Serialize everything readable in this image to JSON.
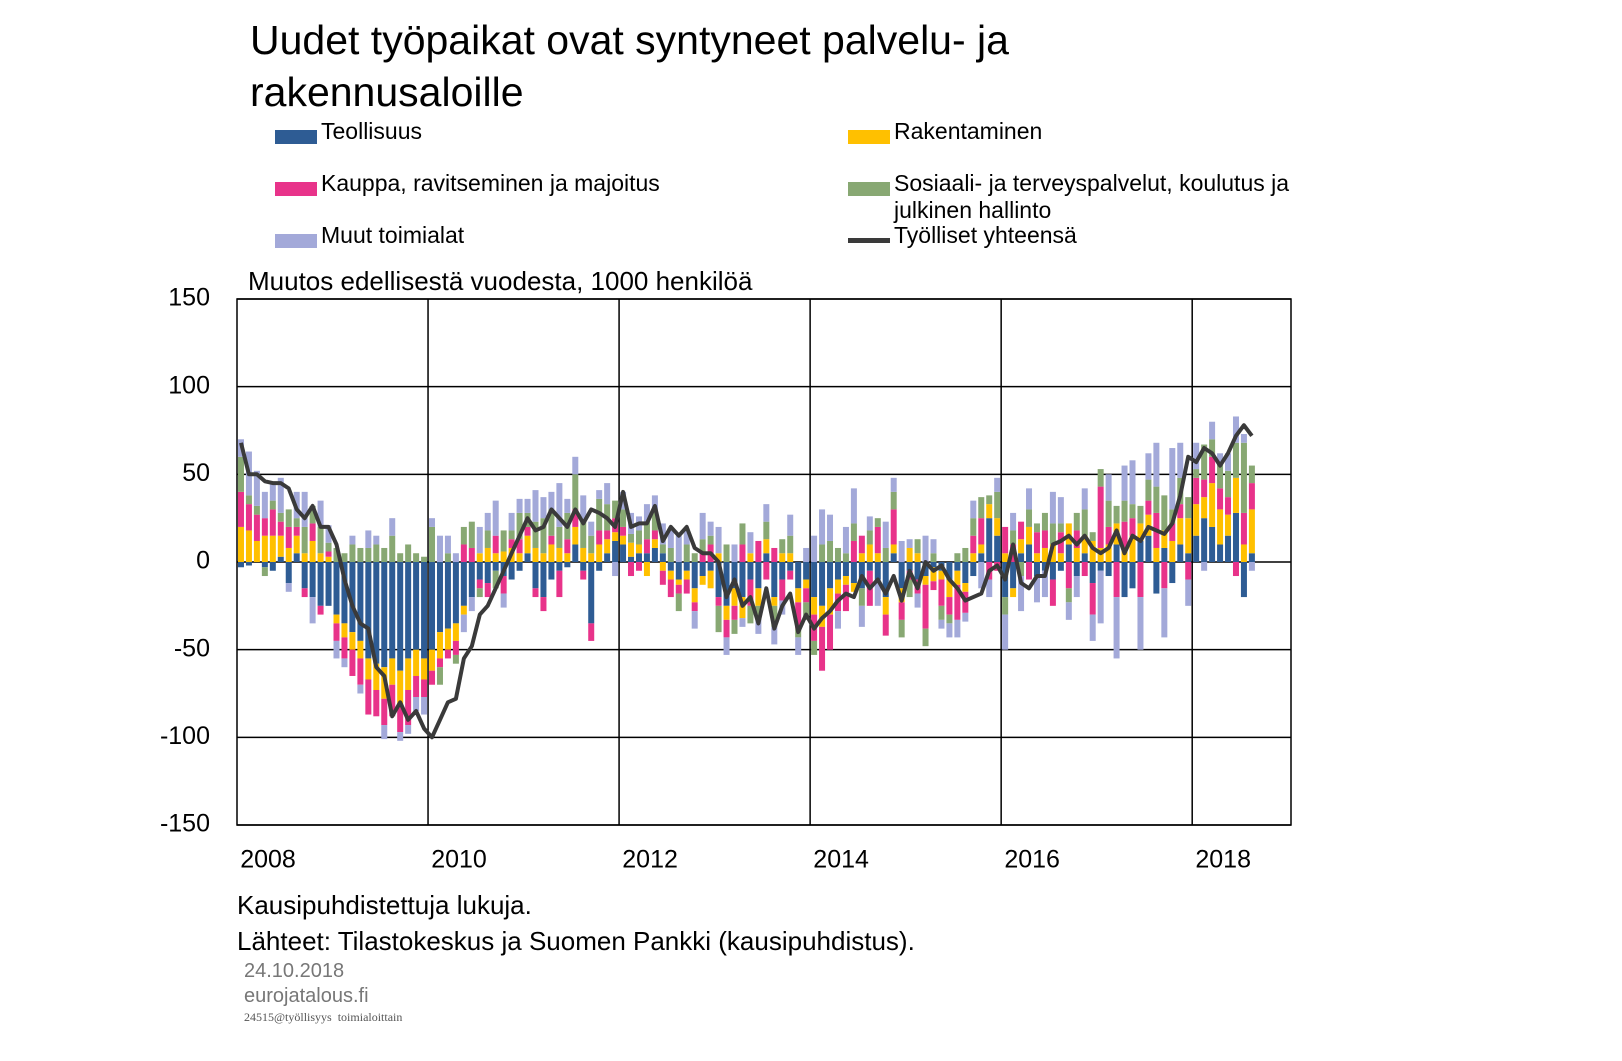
{
  "chart_data": {
    "type": "bar",
    "title": "Uudet työpaikat ovat syntyneet palvelu- ja rakennusaloille",
    "subtitle": "Muutos edellisestä vuodesta, 1000 henkilöä",
    "notes": [
      "Kausipuhdistettuja lukuja.",
      "Lähteet: Tilastokeskus ja Suomen Pankki (kausipuhdistus).",
      "24.10.2018",
      "eurojatalous.fi",
      "24515@työllisyys  toimialoittain"
    ],
    "categories": [
      "2008",
      null,
      null,
      null,
      null,
      null,
      null,
      null,
      null,
      null,
      null,
      null,
      null,
      null,
      null,
      null,
      null,
      null,
      null,
      null,
      null,
      null,
      null,
      null,
      "2010",
      null,
      null,
      null,
      null,
      null,
      null,
      null,
      null,
      null,
      null,
      null,
      null,
      null,
      null,
      null,
      null,
      null,
      null,
      null,
      null,
      null,
      null,
      null,
      "2012",
      null,
      null,
      null,
      null,
      null,
      null,
      null,
      null,
      null,
      null,
      null,
      null,
      null,
      null,
      null,
      null,
      null,
      null,
      null,
      null,
      null,
      null,
      null,
      "2014",
      null,
      null,
      null,
      null,
      null,
      null,
      null,
      null,
      null,
      null,
      null,
      null,
      null,
      null,
      null,
      null,
      null,
      null,
      null,
      null,
      null,
      null,
      null,
      "2016",
      null,
      null,
      null,
      null,
      null,
      null,
      null,
      null,
      null,
      null,
      null,
      null,
      null,
      null,
      null,
      null,
      null,
      null,
      null,
      null,
      null,
      null,
      null,
      "2018",
      null,
      null,
      null,
      null,
      null,
      null,
      null
    ],
    "series": [
      {
        "name": "Teollisuus",
        "color": "#2e5c94",
        "values": [
          -3,
          -2,
          0,
          -3,
          -5,
          3,
          -12,
          5,
          -15,
          -20,
          -25,
          -25,
          -30,
          -35,
          -40,
          -45,
          -55,
          -58,
          -60,
          -55,
          -62,
          -55,
          -50,
          -55,
          -50,
          -40,
          -38,
          -35,
          -25,
          -20,
          -10,
          -12,
          -5,
          -8,
          -10,
          -5,
          5,
          -15,
          -20,
          -10,
          -5,
          -3,
          10,
          -5,
          -35,
          -5,
          5,
          12,
          10,
          3,
          5,
          5,
          8,
          5,
          -5,
          -10,
          -5,
          -15,
          -8,
          -5,
          -20,
          -25,
          -15,
          -20,
          -10,
          -15,
          5,
          -20,
          -10,
          -5,
          -15,
          -10,
          -20,
          -25,
          -15,
          -10,
          -8,
          -12,
          -15,
          -5,
          -10,
          -20,
          5,
          -15,
          -5,
          -10,
          -8,
          -3,
          -5,
          -10,
          -5,
          -12,
          -8,
          5,
          25,
          15,
          -20,
          -15,
          5,
          10,
          -8,
          -5,
          -10,
          -5,
          10,
          -8,
          5,
          -12,
          -5,
          -8,
          10,
          -20,
          -15,
          12,
          15,
          -18,
          8,
          -12,
          10,
          5,
          15,
          25,
          20,
          10,
          15,
          28,
          -20,
          5
        ]
      },
      {
        "name": "Rakentaminen",
        "color": "#ffc000",
        "values": [
          20,
          18,
          12,
          15,
          15,
          12,
          8,
          10,
          5,
          12,
          5,
          3,
          -5,
          -8,
          -10,
          -10,
          -12,
          -15,
          -18,
          -15,
          -20,
          -18,
          -15,
          -12,
          -12,
          -15,
          -12,
          -10,
          -5,
          0,
          5,
          8,
          5,
          6,
          8,
          5,
          10,
          8,
          5,
          10,
          8,
          5,
          10,
          8,
          5,
          10,
          8,
          5,
          5,
          8,
          5,
          -8,
          5,
          -5,
          -5,
          -3,
          -5,
          -8,
          -5,
          -10,
          5,
          -8,
          -10,
          -12,
          5,
          -10,
          8,
          -5,
          5,
          5,
          -8,
          -5,
          -10,
          -12,
          -15,
          -8,
          -5,
          -5,
          5,
          10,
          5,
          -10,
          5,
          -8,
          8,
          5,
          -5,
          -8,
          -5,
          -10,
          -8,
          -5,
          5,
          5,
          8,
          10,
          5,
          -5,
          8,
          10,
          5,
          8,
          10,
          5,
          12,
          8,
          10,
          12,
          8,
          10,
          12,
          8,
          15,
          10,
          12,
          8,
          10,
          12,
          15,
          20,
          18,
          12,
          25,
          20,
          12,
          20,
          10,
          25
        ]
      },
      {
        "name": "Kauppa, ravitseminen ja majoitus",
        "color": "#e8338a",
        "values": [
          20,
          15,
          15,
          10,
          15,
          8,
          12,
          5,
          -5,
          10,
          -5,
          3,
          -10,
          -12,
          -15,
          -15,
          -20,
          -15,
          -15,
          -18,
          -15,
          -20,
          -12,
          -10,
          -8,
          -5,
          -5,
          -8,
          10,
          8,
          -5,
          -8,
          10,
          -10,
          5,
          8,
          5,
          -5,
          -8,
          5,
          -15,
          8,
          10,
          -5,
          -10,
          8,
          5,
          8,
          5,
          -8,
          -5,
          8,
          5,
          -8,
          -10,
          -5,
          -8,
          -5,
          5,
          10,
          -5,
          -10,
          -8,
          10,
          -15,
          12,
          -10,
          8,
          -12,
          -5,
          -15,
          -8,
          -15,
          -25,
          -20,
          -10,
          -15,
          12,
          10,
          -20,
          15,
          -12,
          20,
          -10,
          -5,
          -8,
          -25,
          -5,
          -15,
          -10,
          -20,
          -12,
          10,
          15,
          -10,
          -5,
          15,
          10,
          10,
          -10,
          12,
          10,
          -15,
          12,
          -15,
          10,
          -8,
          -18,
          35,
          10,
          -20,
          15,
          10,
          -20,
          8,
          20,
          -15,
          10,
          8,
          -10,
          15,
          10,
          15,
          12,
          10,
          -8,
          18,
          15
        ]
      },
      {
        "name": "Sosiaali- ja terveyspalvelut, koulutus ja julkinen hallinto",
        "color": "#88a873",
        "values": [
          20,
          5,
          5,
          -5,
          5,
          5,
          10,
          5,
          15,
          10,
          15,
          5,
          8,
          5,
          10,
          8,
          8,
          10,
          8,
          15,
          5,
          10,
          5,
          3,
          20,
          -10,
          5,
          -5,
          10,
          15,
          -5,
          10,
          -10,
          12,
          5,
          15,
          8,
          15,
          20,
          15,
          12,
          15,
          20,
          15,
          10,
          18,
          15,
          10,
          10,
          5,
          8,
          10,
          12,
          5,
          8,
          -10,
          10,
          5,
          8,
          5,
          -15,
          10,
          -8,
          12,
          -10,
          -8,
          10,
          -12,
          8,
          10,
          -5,
          -10,
          -8,
          10,
          12,
          8,
          5,
          10,
          -10,
          8,
          5,
          8,
          10,
          -10,
          -10,
          8,
          -10,
          5,
          -8,
          -5,
          5,
          8,
          10,
          12,
          5,
          15,
          -10,
          8,
          -8,
          10,
          5,
          10,
          12,
          5,
          -8,
          10,
          15,
          5,
          10,
          15,
          10,
          12,
          8,
          10,
          12,
          15,
          20,
          8,
          15,
          12,
          5,
          20,
          10,
          15,
          15,
          20,
          40,
          10
        ]
      },
      {
        "name": "Muut toimialat",
        "color": "#a3a9d9",
        "values": [
          10,
          25,
          20,
          15,
          10,
          20,
          -5,
          15,
          20,
          -15,
          15,
          10,
          -10,
          -5,
          5,
          -5,
          10,
          5,
          -8,
          10,
          -5,
          -5,
          -8,
          -10,
          5,
          15,
          10,
          5,
          -10,
          -8,
          15,
          10,
          20,
          -8,
          10,
          8,
          8,
          18,
          12,
          10,
          25,
          8,
          10,
          15,
          8,
          5,
          12,
          -8,
          10,
          12,
          8,
          10,
          8,
          12,
          10,
          15,
          8,
          -10,
          15,
          8,
          15,
          -10,
          10,
          -5,
          12,
          -8,
          10,
          -10,
          -8,
          12,
          -10,
          8,
          15,
          20,
          15,
          -10,
          15,
          20,
          -12,
          8,
          -15,
          15,
          8,
          12,
          5,
          -8,
          15,
          8,
          -5,
          -8,
          -10,
          -5,
          10,
          -15,
          -10,
          8,
          -20,
          10,
          -20,
          12,
          -15,
          -15,
          18,
          15,
          -10,
          -12,
          12,
          -15,
          -30,
          15,
          -35,
          20,
          25,
          -30,
          15,
          25,
          -28,
          35,
          20,
          -15,
          15,
          -5,
          10,
          5,
          10,
          15,
          5,
          -5
        ]
      },
      {
        "name": "Työlliset yhteensä",
        "type": "line",
        "color": "#3a3a3a",
        "values": [
          68,
          50,
          50,
          46,
          45,
          45,
          42,
          30,
          25,
          32,
          20,
          20,
          10,
          -10,
          -25,
          -35,
          -38,
          -60,
          -65,
          -88,
          -80,
          -90,
          -85,
          -95,
          -100,
          -90,
          -80,
          -78,
          -55,
          -48,
          -30,
          -25,
          -15,
          -5,
          5,
          15,
          25,
          18,
          20,
          30,
          25,
          20,
          30,
          22,
          30,
          28,
          25,
          20,
          40,
          20,
          22,
          22,
          32,
          12,
          20,
          15,
          20,
          8,
          5,
          5,
          0,
          -20,
          -10,
          -25,
          -20,
          -35,
          -15,
          -38,
          -25,
          -18,
          -40,
          -30,
          -38,
          -32,
          -28,
          -22,
          -18,
          -20,
          -8,
          -15,
          -10,
          -18,
          -8,
          -22,
          -5,
          -15,
          0,
          -5,
          -2,
          -10,
          -15,
          -22,
          -20,
          -18,
          -5,
          -2,
          -10,
          10,
          -12,
          -15,
          -8,
          -8,
          10,
          12,
          15,
          10,
          15,
          8,
          5,
          8,
          18,
          5,
          15,
          12,
          20,
          18,
          16,
          22,
          38,
          60,
          57,
          65,
          62,
          55,
          62,
          72,
          78,
          72
        ]
      }
    ],
    "ylim": [
      -150,
      150
    ],
    "yticks": [
      150,
      100,
      50,
      0,
      -50,
      -100,
      -150
    ],
    "grid": true,
    "stacked": true
  }
}
